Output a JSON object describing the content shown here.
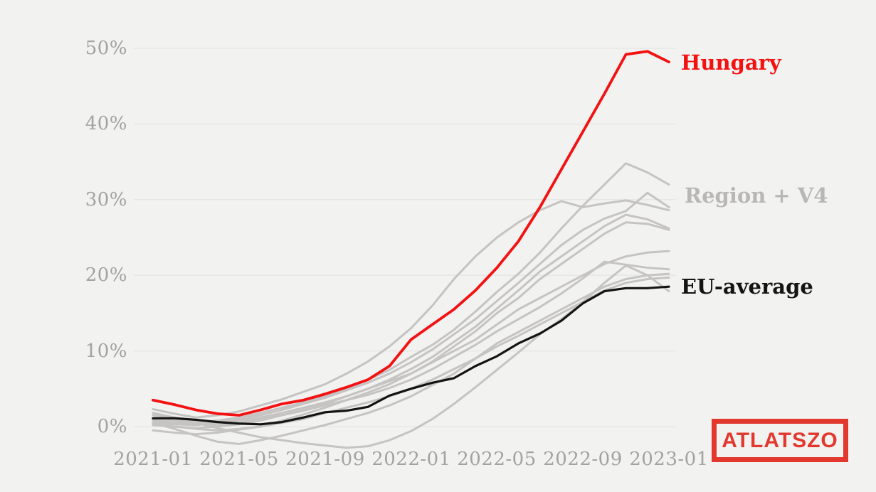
{
  "page": {
    "background": "#f2f2f1",
    "description": "Line chart comparing Hungary, regional countries (Region + V4) and the EU average from 2021-01 to 2023-01"
  },
  "chart_data": {
    "type": "line",
    "x": [
      "2021-01",
      "2021-02",
      "2021-03",
      "2021-04",
      "2021-05",
      "2021-06",
      "2021-07",
      "2021-08",
      "2021-09",
      "2021-10",
      "2021-11",
      "2021-12",
      "2022-01",
      "2022-02",
      "2022-03",
      "2022-04",
      "2022-05",
      "2022-06",
      "2022-07",
      "2022-08",
      "2022-09",
      "2022-10",
      "2022-11",
      "2022-12",
      "2023-01"
    ],
    "x_tick_labels": [
      "2021-01",
      "2021-05",
      "2021-09",
      "2022-01",
      "2022-05",
      "2022-09",
      "2023-01"
    ],
    "y_tick_labels": [
      "0%",
      "10%",
      "20%",
      "30%",
      "40%",
      "50%"
    ],
    "y_tick_values": [
      0,
      10,
      20,
      30,
      40,
      50
    ],
    "ylim": [
      -4,
      53
    ],
    "grid": "horizontal",
    "legend_position": "right-inline-labels",
    "series": [
      {
        "name": "Hungary",
        "role": "hungary",
        "color": "#f31111",
        "width": 3.8,
        "values": [
          3.5,
          2.9,
          2.2,
          1.7,
          1.5,
          2.2,
          3.0,
          3.5,
          4.3,
          5.2,
          6.2,
          8.0,
          11.5,
          13.5,
          15.5,
          18.0,
          21.0,
          24.5,
          29.0,
          34.0,
          39.0,
          44.0,
          49.2,
          49.6,
          48.2
        ]
      },
      {
        "name": "EU-average",
        "role": "eu",
        "color": "#141414",
        "width": 3.2,
        "values": [
          1.1,
          1.1,
          0.9,
          0.6,
          0.4,
          0.3,
          0.6,
          1.2,
          1.9,
          2.1,
          2.6,
          4.1,
          5.0,
          5.8,
          6.4,
          8.0,
          9.3,
          11.0,
          12.3,
          14.0,
          16.3,
          17.9,
          18.3,
          18.3,
          18.5
        ]
      },
      {
        "name": "Region + V4 line 1",
        "role": "region",
        "color": "#c5c4c2",
        "width": 3,
        "values": [
          1.0,
          0.8,
          0.5,
          0.8,
          1.2,
          1.8,
          2.5,
          3.2,
          4.0,
          5.0,
          6.2,
          7.5,
          9.2,
          10.8,
          12.8,
          15.2,
          17.8,
          20.2,
          23.0,
          26.2,
          29.2,
          32.0,
          34.8,
          33.6,
          32.0
        ]
      },
      {
        "name": "Region + V4 line 2",
        "role": "region",
        "color": "#c5c4c2",
        "width": 3,
        "values": [
          0.5,
          0.3,
          0.2,
          0.5,
          1.0,
          1.5,
          2.2,
          3.0,
          3.8,
          4.8,
          5.8,
          7.0,
          8.5,
          10.2,
          12.2,
          14.2,
          16.6,
          19.0,
          21.5,
          24.0,
          26.0,
          27.5,
          28.5,
          30.9,
          29.0
        ]
      },
      {
        "name": "Region + V4 line 3",
        "role": "region",
        "color": "#c5c4c2",
        "width": 3,
        "values": [
          2.3,
          1.7,
          1.2,
          1.5,
          2.0,
          2.8,
          3.6,
          4.6,
          5.6,
          7.0,
          8.6,
          10.6,
          13.0,
          16.0,
          19.5,
          22.5,
          25.0,
          27.0,
          28.6,
          29.8,
          29.0,
          29.5,
          29.9,
          29.3,
          28.6
        ]
      },
      {
        "name": "Region + V4 line 4",
        "role": "region",
        "color": "#c5c4c2",
        "width": 3,
        "values": [
          0.2,
          0.0,
          -0.2,
          0.0,
          0.3,
          0.8,
          1.5,
          2.2,
          3.0,
          4.0,
          5.0,
          6.2,
          7.6,
          9.2,
          11.2,
          13.2,
          15.6,
          18.0,
          20.5,
          22.5,
          24.5,
          26.5,
          28.0,
          27.4,
          26.2
        ]
      },
      {
        "name": "Region + V4 line 5",
        "role": "region",
        "color": "#c5c4c2",
        "width": 3,
        "values": [
          -0.5,
          -0.8,
          -1.0,
          -0.8,
          -0.4,
          0.0,
          0.8,
          1.6,
          2.5,
          3.5,
          4.5,
          5.6,
          7.0,
          8.6,
          10.6,
          12.6,
          15.0,
          17.0,
          19.5,
          21.5,
          23.5,
          25.5,
          27.0,
          26.8,
          26.0
        ]
      },
      {
        "name": "Region + V4 line 6",
        "role": "region",
        "color": "#c5c4c2",
        "width": 3,
        "values": [
          1.5,
          1.2,
          0.8,
          0.5,
          0.8,
          1.2,
          1.8,
          2.5,
          3.2,
          4.0,
          5.0,
          6.0,
          7.0,
          8.5,
          10.0,
          11.5,
          13.5,
          15.5,
          17.0,
          18.5,
          20.0,
          21.5,
          22.5,
          23.0,
          23.2
        ]
      },
      {
        "name": "Region + V4 line 7",
        "role": "region",
        "color": "#c5c4c2",
        "width": 3,
        "values": [
          0.8,
          0.5,
          0.3,
          0.2,
          0.5,
          1.0,
          1.5,
          2.1,
          2.8,
          3.5,
          4.2,
          5.1,
          6.2,
          7.6,
          9.2,
          10.8,
          12.6,
          14.2,
          15.8,
          17.6,
          19.6,
          21.8,
          21.4,
          21.0,
          20.8
        ]
      },
      {
        "name": "Region + V4 line 8",
        "role": "region",
        "color": "#c5c4c2",
        "width": 3,
        "values": [
          0.5,
          -0.3,
          -1.2,
          -2.0,
          -2.3,
          -1.8,
          -1.2,
          -0.5,
          0.2,
          1.0,
          1.8,
          2.8,
          4.0,
          5.5,
          7.0,
          9.0,
          11.0,
          12.5,
          14.0,
          15.5,
          17.0,
          18.5,
          19.5,
          20.0,
          20.2
        ]
      },
      {
        "name": "Region + V4 line 9",
        "role": "region",
        "color": "#c5c4c2",
        "width": 3,
        "values": [
          0.3,
          0.0,
          -0.3,
          -0.5,
          -0.3,
          0.0,
          0.5,
          1.0,
          1.8,
          2.5,
          3.2,
          4.0,
          5.0,
          6.2,
          7.6,
          9.0,
          10.6,
          12.0,
          13.5,
          15.0,
          16.5,
          18.0,
          19.0,
          19.5,
          19.7
        ]
      },
      {
        "name": "Region + V4 line 10",
        "role": "region",
        "color": "#c5c4c2",
        "width": 3,
        "values": [
          1.8,
          1.2,
          0.5,
          -0.2,
          -0.8,
          -1.4,
          -1.8,
          -2.2,
          -2.5,
          -2.8,
          -2.6,
          -1.8,
          -0.6,
          1.0,
          3.0,
          5.2,
          7.5,
          9.8,
          12.2,
          14.2,
          16.5,
          19.0,
          21.3,
          20.0,
          17.9
        ]
      }
    ],
    "annotations": [
      {
        "id": "hungary",
        "text": "Hungary",
        "color": "#f31111"
      },
      {
        "id": "region",
        "text": "Region + V4",
        "color": "#b8b7b5"
      },
      {
        "id": "eu",
        "text": "EU-average",
        "color": "#141414"
      }
    ],
    "gridline_color": "#e7e7e5"
  },
  "branding": {
    "logo_text": "ATLATSZO",
    "logo_color": "#e2382e"
  }
}
